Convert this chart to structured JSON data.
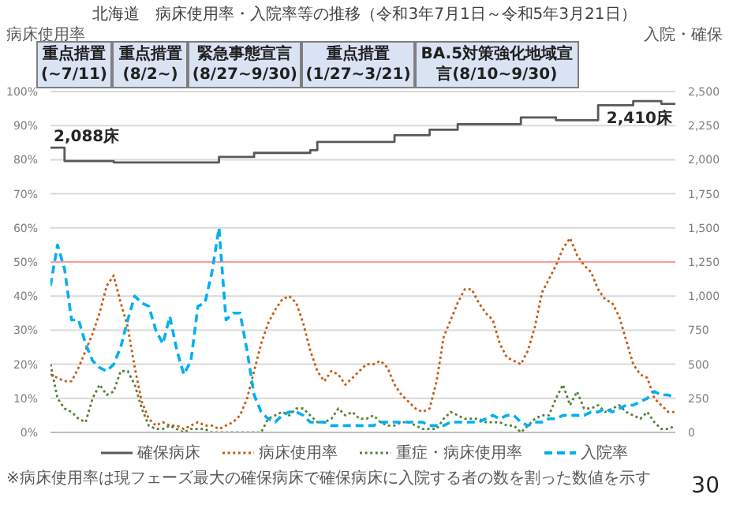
{
  "chart_data": {
    "type": "line",
    "title": "北海道　病床使用率・入院率等の推移（令和3年7月1日～令和5年3月21日）",
    "ylabel": "病床使用率",
    "y2label": "入院・確保",
    "categories": [
      null,
      null,
      null,
      null,
      null,
      null,
      null,
      null,
      null,
      null,
      null,
      null,
      null,
      null,
      null,
      null,
      null,
      null,
      null,
      null,
      null,
      null,
      null,
      null,
      null,
      null,
      null,
      null,
      null,
      null,
      null,
      null,
      null,
      null,
      null,
      null,
      null,
      null,
      null,
      null,
      null,
      null,
      null,
      null,
      null,
      null,
      null,
      null,
      null,
      null,
      null,
      null,
      null,
      null,
      null,
      null,
      null,
      null,
      null,
      null,
      null,
      null,
      null,
      null,
      null,
      null,
      null,
      null,
      null,
      null,
      null,
      null,
      null,
      null,
      null,
      null,
      null,
      null,
      null,
      null,
      null,
      null,
      null,
      null,
      null,
      null,
      null,
      null,
      null,
      null
    ],
    "ylim": [
      0,
      100
    ],
    "yticks": [
      {
        "value": 0,
        "label": "0%"
      },
      {
        "value": 10,
        "label": "10%"
      },
      {
        "value": 20,
        "label": "20%"
      },
      {
        "value": 30,
        "label": "30%"
      },
      {
        "value": 40,
        "label": "40%"
      },
      {
        "value": 50,
        "label": "50%"
      },
      {
        "value": 60,
        "label": "60%"
      },
      {
        "value": 70,
        "label": "70%"
      },
      {
        "value": 80,
        "label": "80%"
      },
      {
        "value": 90,
        "label": "90%"
      },
      {
        "value": 100,
        "label": "100%"
      }
    ],
    "y2lim": [
      0,
      2500
    ],
    "y2ticks": [
      0,
      250,
      500,
      750,
      {
        "value": 1000,
        "label": "1,000"
      },
      {
        "value": 1250,
        "label": "1,250"
      },
      {
        "value": 1500,
        "label": "1,500"
      },
      {
        "value": 1750,
        "label": "1,750"
      },
      {
        "value": 2000,
        "label": "2,000"
      },
      {
        "value": 2250,
        "label": "2,250"
      },
      {
        "value": 2500,
        "label": "2,500"
      }
    ],
    "tick_labels": "y",
    "grid": "y",
    "legend": "bottom",
    "marker": "none",
    "series": [
      {
        "name": "確保病床",
        "type": "step",
        "axis": "y2",
        "color": "#595959",
        "values": [
          2088,
          2088,
          1990,
          1990,
          1990,
          1990,
          1990,
          1990,
          1990,
          1980,
          1980,
          1980,
          1980,
          1980,
          1980,
          1980,
          1980,
          1980,
          1980,
          1980,
          1980,
          1980,
          1980,
          1980,
          2020,
          2020,
          2020,
          2020,
          2020,
          2050,
          2050,
          2050,
          2050,
          2050,
          2050,
          2050,
          2050,
          2070,
          2130,
          2130,
          2130,
          2130,
          2130,
          2130,
          2130,
          2130,
          2130,
          2130,
          2130,
          2180,
          2180,
          2180,
          2180,
          2180,
          2220,
          2220,
          2220,
          2220,
          2260,
          2260,
          2260,
          2260,
          2260,
          2260,
          2260,
          2260,
          2260,
          2310,
          2310,
          2310,
          2310,
          2310,
          2290,
          2290,
          2290,
          2290,
          2290,
          2290,
          2400,
          2400,
          2400,
          2400,
          2400,
          2430,
          2430,
          2430,
          2430,
          2410,
          2410,
          2410
        ],
        "value_labels": [
          "2,088床",
          null,
          null,
          null,
          null,
          null,
          null,
          null,
          null,
          null,
          null,
          null,
          null,
          null,
          null,
          null,
          null,
          null,
          null,
          null,
          null,
          null,
          null,
          null,
          null,
          null,
          null,
          null,
          null,
          null,
          null,
          null,
          null,
          null,
          null,
          null,
          null,
          null,
          null,
          null,
          null,
          null,
          null,
          null,
          null,
          null,
          null,
          null,
          null,
          null,
          null,
          null,
          null,
          null,
          null,
          null,
          null,
          null,
          null,
          null,
          null,
          null,
          null,
          null,
          null,
          null,
          null,
          null,
          null,
          null,
          null,
          null,
          null,
          null,
          null,
          null,
          null,
          null,
          null,
          null,
          null,
          null,
          null,
          null,
          null,
          null,
          null,
          null,
          null,
          "2,410床"
        ]
      },
      {
        "name": "病床使用率",
        "color": "#c55a11",
        "line_style": "dotted",
        "values": [
          17,
          16,
          15,
          15,
          19,
          24,
          29,
          35,
          43,
          46,
          38,
          31,
          19,
          9,
          4,
          2,
          3,
          2,
          2,
          1,
          2,
          3,
          2,
          2,
          1,
          2,
          3,
          5,
          10,
          18,
          26,
          32,
          36,
          39,
          40,
          38,
          32,
          24,
          18,
          15,
          18,
          17,
          14,
          16,
          18,
          20,
          20,
          21,
          19,
          14,
          11,
          9,
          7,
          6,
          7,
          15,
          28,
          33,
          38,
          42,
          42,
          38,
          35,
          33,
          26,
          22,
          21,
          20,
          24,
          31,
          41,
          45,
          49,
          54,
          57,
          52,
          49,
          47,
          42,
          39,
          38,
          34,
          27,
          20,
          17,
          16,
          10,
          8,
          6,
          6
        ]
      },
      {
        "name": "重症・病床使用率",
        "color": "#548235",
        "line_style": "dotted",
        "values": [
          20,
          10,
          7,
          6,
          4,
          3,
          10,
          14,
          11,
          12,
          18,
          18,
          14,
          7,
          2,
          1,
          1,
          2,
          1,
          0,
          1,
          1,
          1,
          0,
          0,
          0,
          0,
          0,
          0,
          0,
          0,
          4,
          5,
          6,
          5,
          7,
          7,
          5,
          3,
          3,
          4,
          7,
          5,
          6,
          4,
          4,
          5,
          3,
          2,
          2,
          3,
          3,
          2,
          1,
          1,
          1,
          4,
          6,
          5,
          4,
          4,
          4,
          3,
          3,
          3,
          2,
          2,
          0,
          2,
          4,
          5,
          5,
          10,
          14,
          8,
          12,
          7,
          7,
          8,
          6,
          7,
          8,
          6,
          5,
          4,
          6,
          3,
          1,
          1,
          2
        ]
      },
      {
        "name": "入院率",
        "color": "#00b0f0",
        "line_style": "dashed",
        "values": [
          43,
          55,
          48,
          33,
          33,
          26,
          21,
          19,
          18,
          20,
          25,
          33,
          40,
          38,
          37,
          30,
          26,
          34,
          24,
          17,
          21,
          37,
          38,
          47,
          60,
          33,
          35,
          35,
          24,
          11,
          6,
          4,
          3,
          5,
          6,
          6,
          5,
          3,
          3,
          3,
          2,
          2,
          2,
          2,
          2,
          2,
          2,
          3,
          3,
          3,
          3,
          3,
          3,
          3,
          2,
          2,
          2,
          3,
          3,
          3,
          3,
          3,
          4,
          5,
          4,
          5,
          5,
          3,
          2,
          3,
          3,
          4,
          4,
          5,
          5,
          5,
          5,
          6,
          6,
          7,
          6,
          7,
          8,
          8,
          9,
          10,
          12,
          11,
          11,
          10
        ]
      }
    ],
    "ref_lines": [
      {
        "axis": "y",
        "value": 50,
        "color": "#ff9999"
      }
    ],
    "annotations": [
      "重点措置\n(~7/11)",
      "重点措置\n(8/2~)",
      "緊急事態宣言\n(8/27~9/30)",
      "重点措置\n(1/27~3/21)",
      "BA.5対策強化地域宣言(8/10~9/30)",
      "※病床使用率は現フェーズ最大の確保病床で確保病床に入院する者の数を割った数値を示す",
      "30"
    ]
  }
}
